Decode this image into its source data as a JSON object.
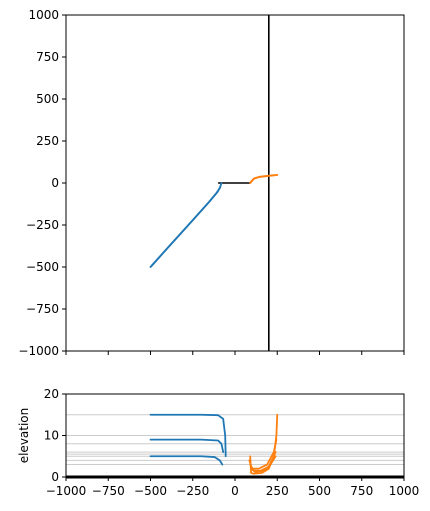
{
  "chart_data": [
    {
      "type": "line",
      "title": "",
      "xlabel": "",
      "ylabel": "",
      "xlim": [
        -1000,
        1000
      ],
      "ylim": [
        -1000,
        1000
      ],
      "x_ticks": [
        -1000,
        -750,
        -500,
        -250,
        0,
        250,
        500,
        750,
        1000
      ],
      "y_ticks": [
        1000,
        750,
        500,
        250,
        0,
        -250,
        -500,
        -750,
        -1000
      ],
      "y_tick_labels": [
        "1000",
        "750",
        "500",
        "250",
        "0",
        "−250",
        "−500",
        "−750",
        "−1000"
      ],
      "x_tick_labels_visible": false,
      "colors": {
        "blue": "#1f77b4",
        "orange": "#ff7f0e",
        "black": "#000000"
      },
      "reference_lines": [
        {
          "points": [
            [
              200,
              -1000
            ],
            [
              200,
              1000
            ]
          ],
          "color": "black"
        },
        {
          "points": [
            [
              -100,
              0
            ],
            [
              90,
              0
            ]
          ],
          "color": "black"
        }
      ],
      "series": [
        {
          "color": "blue",
          "points": [
            [
              -500,
              -500
            ],
            [
              -420,
              -410
            ],
            [
              -330,
              -310
            ],
            [
              -240,
              -210
            ],
            [
              -160,
              -120
            ],
            [
              -110,
              -60
            ],
            [
              -90,
              -30
            ],
            [
              -80,
              0
            ]
          ]
        },
        {
          "color": "blue",
          "points": [
            [
              -495,
              -495
            ],
            [
              -415,
              -405
            ],
            [
              -325,
              -305
            ],
            [
              -235,
              -205
            ],
            [
              -155,
              -115
            ],
            [
              -105,
              -55
            ],
            [
              -87,
              -25
            ]
          ]
        },
        {
          "color": "orange",
          "points": [
            [
              90,
              0
            ],
            [
              110,
              25
            ],
            [
              140,
              35
            ],
            [
              180,
              40
            ],
            [
              220,
              45
            ],
            [
              250,
              48
            ]
          ]
        },
        {
          "color": "orange",
          "points": [
            [
              92,
              5
            ],
            [
              115,
              28
            ],
            [
              150,
              38
            ],
            [
              190,
              42
            ],
            [
              230,
              46
            ]
          ]
        }
      ]
    },
    {
      "type": "line",
      "title": "",
      "xlabel": "",
      "ylabel": "elevation",
      "xlim": [
        -1000,
        1000
      ],
      "ylim": [
        0,
        20
      ],
      "x_ticks": [
        -1000,
        -750,
        -500,
        -250,
        0,
        250,
        500,
        750,
        1000
      ],
      "x_tick_labels": [
        "−1000",
        "−750",
        "−500",
        "−250",
        "0",
        "250",
        "500",
        "750",
        "1000"
      ],
      "y_ticks": [
        20,
        10,
        0
      ],
      "y_tick_labels": [
        "20",
        "10",
        "0"
      ],
      "colors": {
        "blue": "#1f77b4",
        "orange": "#ff7f0e",
        "grid": "#cccccc",
        "black": "#000000"
      },
      "horizontal_reference_y": [
        15,
        10,
        8,
        6,
        5.5,
        5,
        4,
        3
      ],
      "baseline_y": 0,
      "series": [
        {
          "color": "blue",
          "points": [
            [
              -500,
              15
            ],
            [
              -200,
              15
            ],
            [
              -100,
              14.9
            ],
            [
              -70,
              14
            ],
            [
              -58,
              10
            ],
            [
              -55,
              5
            ]
          ]
        },
        {
          "color": "blue",
          "points": [
            [
              -500,
              9
            ],
            [
              -200,
              9
            ],
            [
              -100,
              8.8
            ],
            [
              -80,
              8
            ],
            [
              -70,
              6
            ]
          ]
        },
        {
          "color": "blue",
          "points": [
            [
              -500,
              5
            ],
            [
              -200,
              5
            ],
            [
              -120,
              4.8
            ],
            [
              -90,
              4
            ],
            [
              -75,
              3
            ]
          ]
        },
        {
          "color": "orange",
          "points": [
            [
              90,
              5
            ],
            [
              95,
              1
            ],
            [
              110,
              0.8
            ],
            [
              160,
              1
            ],
            [
              200,
              2
            ],
            [
              230,
              5
            ],
            [
              245,
              10
            ],
            [
              250,
              15
            ]
          ]
        },
        {
          "color": "orange",
          "points": [
            [
              85,
              4
            ],
            [
              100,
              2
            ],
            [
              140,
              2
            ],
            [
              190,
              3
            ],
            [
              230,
              6
            ],
            [
              245,
              9
            ]
          ]
        },
        {
          "color": "orange",
          "points": [
            [
              90,
              3
            ],
            [
              110,
              1.5
            ],
            [
              150,
              1.5
            ],
            [
              200,
              2.5
            ],
            [
              240,
              6
            ]
          ]
        },
        {
          "color": "orange",
          "points": [
            [
              95,
              2
            ],
            [
              120,
              1.2
            ],
            [
              170,
              1.5
            ],
            [
              210,
              3
            ],
            [
              240,
              5
            ]
          ]
        }
      ]
    }
  ]
}
